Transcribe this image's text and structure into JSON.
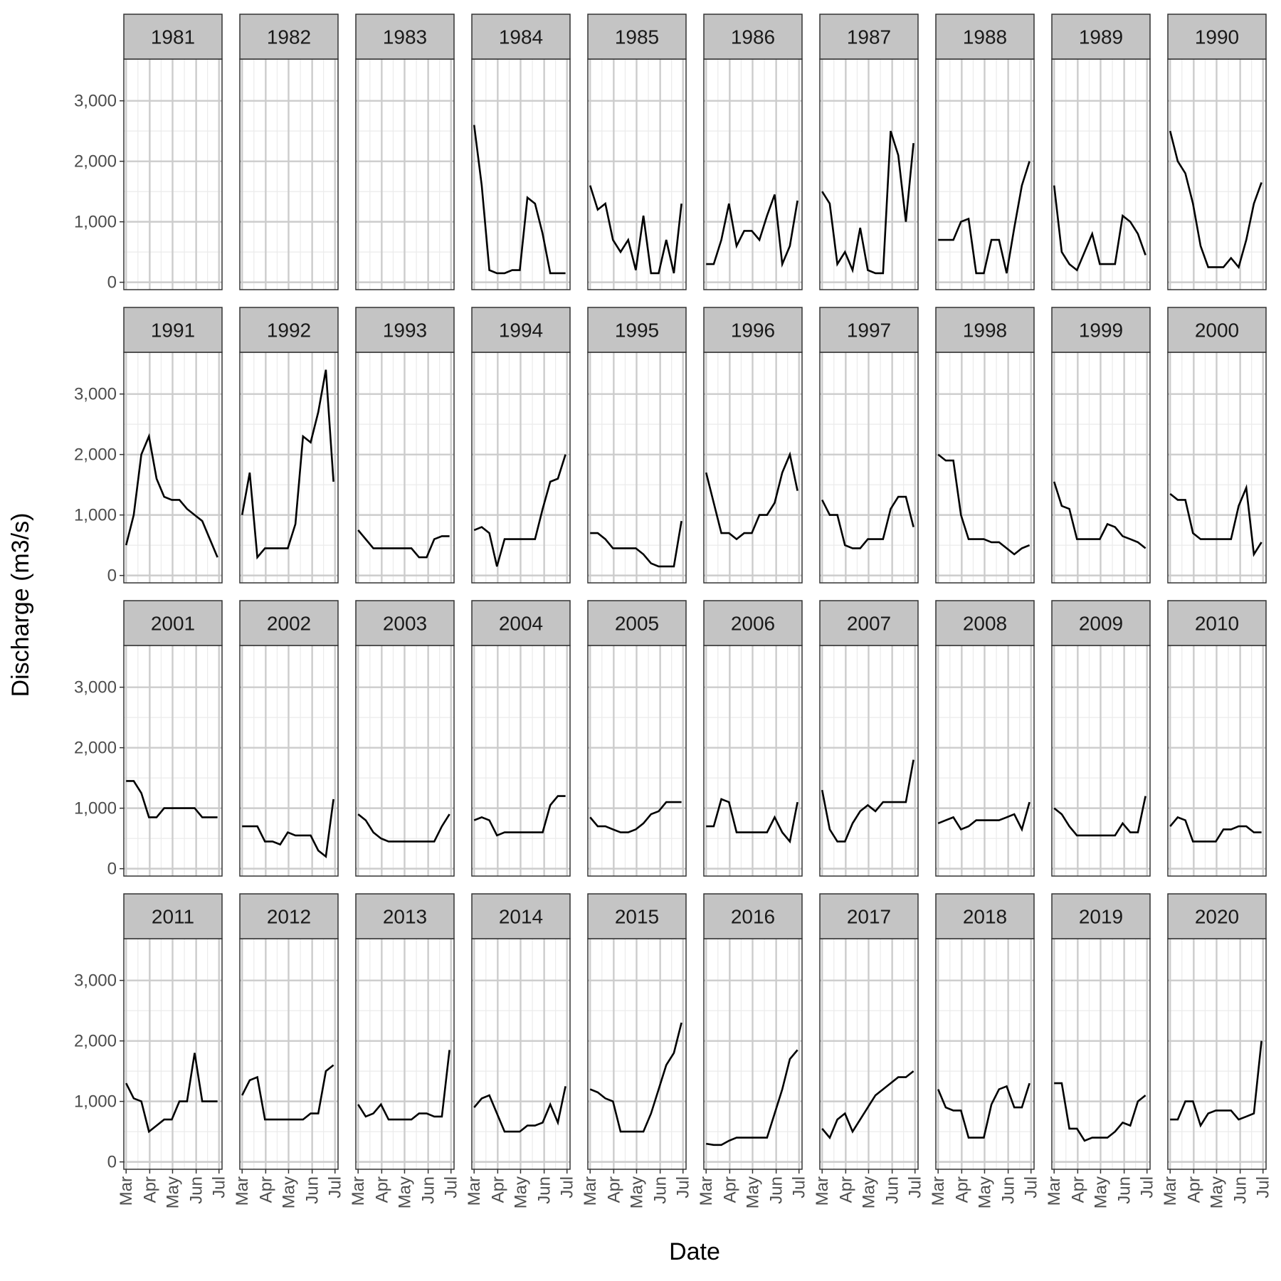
{
  "chart_data": {
    "type": "line",
    "x_label": "Date",
    "y_label": "Discharge (m3/s)",
    "x": [
      0,
      10,
      20,
      30,
      40,
      50,
      60,
      70,
      80,
      90,
      100,
      110,
      120
    ],
    "xlim": [
      -3,
      126
    ],
    "xticks": [
      {
        "value": 0,
        "label": "Mar"
      },
      {
        "value": 31,
        "label": "Apr"
      },
      {
        "value": 61,
        "label": "May"
      },
      {
        "value": 92,
        "label": "Jun"
      },
      {
        "value": 122,
        "label": "Jul"
      }
    ],
    "ylim": [
      -122,
      3690
    ],
    "yticks": [
      0,
      {
        "value": 1000,
        "label": "1,000"
      },
      {
        "value": 2000,
        "label": "2,000"
      },
      {
        "value": 3000,
        "label": "3,000"
      }
    ],
    "grid": true,
    "color": "#000000",
    "facets": [
      {
        "title": "1981",
        "values": [
          null,
          null,
          null,
          null,
          null,
          null,
          null,
          null,
          null,
          null,
          null,
          null,
          null
        ]
      },
      {
        "title": "1982",
        "values": [
          null,
          null,
          null,
          null,
          null,
          null,
          null,
          null,
          null,
          null,
          null,
          null,
          null
        ]
      },
      {
        "title": "1983",
        "values": [
          null,
          null,
          null,
          null,
          null,
          null,
          null,
          null,
          null,
          null,
          null,
          null,
          null
        ]
      },
      {
        "title": "1984",
        "values": [
          2600,
          1600,
          200,
          150,
          150,
          200,
          200,
          1400,
          1300,
          800,
          150,
          150,
          150
        ]
      },
      {
        "title": "1985",
        "values": [
          1600,
          1200,
          1300,
          700,
          500,
          700,
          200,
          1100,
          150,
          150,
          700,
          150,
          1300
        ]
      },
      {
        "title": "1986",
        "values": [
          300,
          300,
          700,
          1300,
          600,
          850,
          850,
          700,
          1100,
          1450,
          300,
          600,
          1350
        ]
      },
      {
        "title": "1987",
        "values": [
          1500,
          1300,
          300,
          500,
          200,
          900,
          200,
          150,
          150,
          2500,
          2100,
          1000,
          2300
        ]
      },
      {
        "title": "1988",
        "values": [
          700,
          700,
          700,
          1000,
          1050,
          150,
          150,
          700,
          700,
          150,
          900,
          1600,
          2000
        ]
      },
      {
        "title": "1989",
        "values": [
          1600,
          500,
          300,
          200,
          500,
          800,
          300,
          300,
          300,
          1100,
          1000,
          800,
          450
        ]
      },
      {
        "title": "1990",
        "values": [
          2500,
          2000,
          1800,
          1300,
          600,
          250,
          250,
          250,
          400,
          250,
          700,
          1300,
          1650
        ]
      },
      {
        "title": "1991",
        "values": [
          500,
          1000,
          2000,
          2300,
          1600,
          1300,
          1250,
          1250,
          1100,
          1000,
          900,
          600,
          300
        ]
      },
      {
        "title": "1992",
        "values": [
          1000,
          1700,
          300,
          450,
          450,
          450,
          450,
          850,
          2300,
          2200,
          2700,
          3400,
          1550
        ]
      },
      {
        "title": "1993",
        "values": [
          750,
          600,
          450,
          450,
          450,
          450,
          450,
          450,
          300,
          300,
          600,
          650,
          650
        ]
      },
      {
        "title": "1994",
        "values": [
          750,
          800,
          700,
          150,
          600,
          600,
          600,
          600,
          600,
          1100,
          1550,
          1600,
          2000
        ]
      },
      {
        "title": "1995",
        "values": [
          700,
          700,
          600,
          450,
          450,
          450,
          450,
          350,
          200,
          150,
          150,
          150,
          900
        ]
      },
      {
        "title": "1996",
        "values": [
          1700,
          1200,
          700,
          700,
          600,
          700,
          700,
          1000,
          1000,
          1200,
          1700,
          2000,
          1400
        ]
      },
      {
        "title": "1997",
        "values": [
          1250,
          1000,
          1000,
          500,
          450,
          450,
          600,
          600,
          600,
          1100,
          1300,
          1300,
          800
        ]
      },
      {
        "title": "1998",
        "values": [
          2000,
          1900,
          1900,
          1000,
          600,
          600,
          600,
          550,
          550,
          450,
          350,
          450,
          500
        ]
      },
      {
        "title": "1999",
        "values": [
          1550,
          1150,
          1100,
          600,
          600,
          600,
          600,
          850,
          800,
          650,
          600,
          550,
          450
        ]
      },
      {
        "title": "2000",
        "values": [
          1350,
          1250,
          1250,
          700,
          600,
          600,
          600,
          600,
          600,
          1150,
          1450,
          350,
          550
        ]
      },
      {
        "title": "2001",
        "values": [
          1450,
          1450,
          1250,
          850,
          850,
          1000,
          1000,
          1000,
          1000,
          1000,
          850,
          850,
          850
        ]
      },
      {
        "title": "2002",
        "values": [
          700,
          700,
          700,
          450,
          450,
          400,
          600,
          550,
          550,
          550,
          300,
          200,
          1150
        ]
      },
      {
        "title": "2003",
        "values": [
          900,
          800,
          600,
          500,
          450,
          450,
          450,
          450,
          450,
          450,
          450,
          700,
          900
        ]
      },
      {
        "title": "2004",
        "values": [
          800,
          850,
          800,
          550,
          600,
          600,
          600,
          600,
          600,
          600,
          1050,
          1200,
          1200
        ]
      },
      {
        "title": "2005",
        "values": [
          850,
          700,
          700,
          650,
          600,
          600,
          650,
          750,
          900,
          950,
          1100,
          1100,
          1100
        ]
      },
      {
        "title": "2006",
        "values": [
          700,
          700,
          1150,
          1100,
          600,
          600,
          600,
          600,
          600,
          850,
          600,
          450,
          1100
        ]
      },
      {
        "title": "2007",
        "values": [
          1300,
          650,
          450,
          450,
          750,
          950,
          1050,
          950,
          1100,
          1100,
          1100,
          1100,
          1800
        ]
      },
      {
        "title": "2008",
        "values": [
          750,
          800,
          850,
          650,
          700,
          800,
          800,
          800,
          800,
          850,
          900,
          650,
          1100
        ]
      },
      {
        "title": "2009",
        "values": [
          1000,
          900,
          700,
          550,
          550,
          550,
          550,
          550,
          550,
          750,
          600,
          600,
          1200
        ]
      },
      {
        "title": "2010",
        "values": [
          700,
          850,
          800,
          450,
          450,
          450,
          450,
          650,
          650,
          700,
          700,
          600,
          600
        ]
      },
      {
        "title": "2011",
        "values": [
          1300,
          1050,
          1000,
          500,
          600,
          700,
          700,
          1000,
          1000,
          1800,
          1000,
          1000,
          1000
        ]
      },
      {
        "title": "2012",
        "values": [
          1100,
          1350,
          1400,
          700,
          700,
          700,
          700,
          700,
          700,
          800,
          800,
          1500,
          1600
        ]
      },
      {
        "title": "2013",
        "values": [
          950,
          750,
          800,
          950,
          700,
          700,
          700,
          700,
          800,
          800,
          750,
          750,
          1850
        ]
      },
      {
        "title": "2014",
        "values": [
          900,
          1050,
          1100,
          800,
          500,
          500,
          500,
          600,
          600,
          650,
          950,
          650,
          1250
        ]
      },
      {
        "title": "2015",
        "values": [
          1200,
          1150,
          1050,
          1000,
          500,
          500,
          500,
          500,
          800,
          1200,
          1600,
          1800,
          2300
        ]
      },
      {
        "title": "2016",
        "values": [
          300,
          280,
          280,
          350,
          400,
          400,
          400,
          400,
          400,
          800,
          1200,
          1700,
          1850
        ]
      },
      {
        "title": "2017",
        "values": [
          550,
          400,
          700,
          800,
          500,
          700,
          900,
          1100,
          1200,
          1300,
          1400,
          1400,
          1500
        ]
      },
      {
        "title": "2018",
        "values": [
          1200,
          900,
          850,
          850,
          400,
          400,
          400,
          950,
          1200,
          1250,
          900,
          900,
          1300
        ]
      },
      {
        "title": "2019",
        "values": [
          1300,
          1300,
          550,
          550,
          350,
          400,
          400,
          400,
          500,
          650,
          600,
          1000,
          1100
        ]
      },
      {
        "title": "2020",
        "values": [
          700,
          700,
          1000,
          1000,
          600,
          800,
          850,
          850,
          850,
          700,
          750,
          800,
          2000
        ]
      }
    ]
  }
}
